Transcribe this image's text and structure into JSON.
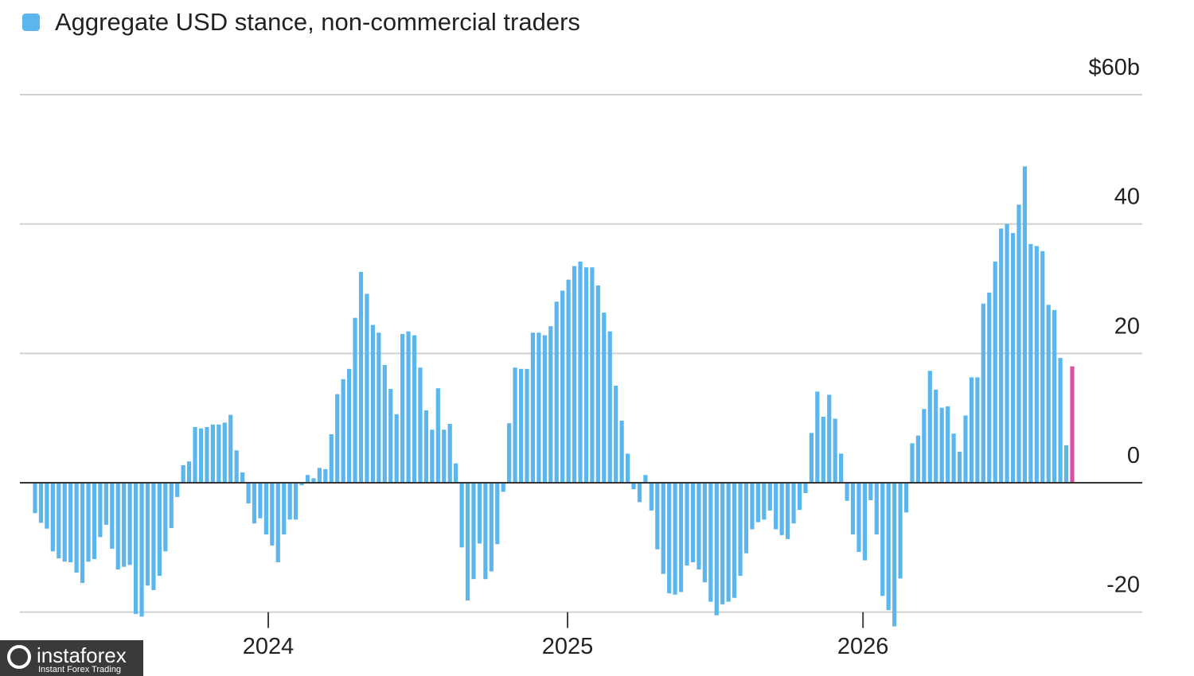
{
  "chart_data": {
    "type": "bar",
    "series": [
      {
        "name": "Aggregate USD stance, non-commercial traders",
        "color": "#5cb6ee",
        "last_color": "#d94fa8",
        "values": [
          -4.7,
          -6.2,
          -7.1,
          -10.6,
          -11.7,
          -12.2,
          -12.3,
          -13.9,
          -15.5,
          -12.2,
          -11.8,
          -8.4,
          -6.5,
          -10.2,
          -13.4,
          -13,
          -12.7,
          -20.3,
          -20.7,
          -15.9,
          -16.6,
          -14.4,
          -10.6,
          -7,
          -2.2,
          2.7,
          3.3,
          8.6,
          8.4,
          8.6,
          9,
          9,
          9.3,
          10.5,
          5,
          1.6,
          -3.2,
          -6.3,
          -5.5,
          -8,
          -9.7,
          -12.3,
          -8,
          -5.7,
          -5.7,
          -0.4,
          1.2,
          0.7,
          2.3,
          2.1,
          7.5,
          13.7,
          16,
          17.6,
          25.5,
          32.6,
          29.2,
          24.4,
          23.2,
          18.2,
          14.5,
          10.6,
          23,
          23.4,
          22.8,
          17.8,
          11.2,
          8.2,
          14.6,
          8.2,
          9.1,
          3,
          -10,
          -18.2,
          -14.9,
          -9.4,
          -14.9,
          -13.7,
          -9.5,
          -1.4,
          9.2,
          17.8,
          17.6,
          17.6,
          23.2,
          23.2,
          22.8,
          24.2,
          28,
          29.7,
          31.4,
          33.5,
          34.2,
          33.3,
          33.3,
          30.5,
          26.3,
          23.4,
          15,
          9.6,
          4.5,
          -1,
          -3,
          1.2,
          -4.3,
          -10.3,
          -14.1,
          -17.1,
          -17.3,
          -16.9,
          -12.8,
          -12.3,
          -13.4,
          -15.4,
          -18.4,
          -20.5,
          -18.8,
          -18.4,
          -17.8,
          -14.4,
          -10.9,
          -7.2,
          -6.1,
          -5.7,
          -4.3,
          -7.2,
          -8.1,
          -8.7,
          -6.3,
          -4.2,
          -1.6,
          7.7,
          14.1,
          10.2,
          13.6,
          9.9,
          4.5,
          -2.8,
          -8,
          -10.7,
          -12,
          -2.7,
          -8,
          -17.5,
          -19.7,
          -22.2,
          -14.8,
          -4.6,
          6.1,
          7.3,
          11.4,
          17.3,
          14.4,
          11.6,
          11.8,
          7.6,
          4.8,
          10.4,
          16.3,
          16.3,
          27.7,
          29.4,
          34.2,
          39.3,
          40,
          38.6,
          43,
          48.9,
          36.9,
          36.6,
          35.8,
          27.5,
          26.7,
          19.3,
          5.8,
          18
        ]
      }
    ],
    "categories": [
      null,
      null,
      null,
      null,
      null,
      null,
      null,
      null,
      null,
      null,
      null,
      null,
      null,
      null,
      null,
      null,
      null,
      null,
      null,
      null,
      null,
      null,
      null,
      null,
      null,
      null,
      null,
      null,
      null,
      null,
      null,
      null,
      null,
      null,
      null,
      null,
      null,
      null,
      null,
      null,
      null,
      null,
      null,
      null,
      null,
      null,
      null,
      null,
      null,
      null,
      null,
      null,
      null,
      null,
      null,
      null,
      null,
      null,
      null,
      null,
      null,
      null,
      null,
      null,
      null,
      null,
      null,
      null,
      null,
      null,
      null,
      null,
      null,
      null,
      null,
      null,
      null,
      null,
      null,
      null,
      null,
      null,
      null,
      null,
      null,
      null,
      null,
      null,
      null,
      null,
      null,
      null,
      null,
      null,
      null,
      null,
      null,
      null,
      null,
      null,
      null,
      null,
      null,
      null,
      null,
      null,
      null,
      null,
      null,
      null,
      null,
      null,
      null,
      null,
      null,
      null,
      null,
      null,
      null,
      null,
      null,
      null,
      null,
      null,
      null,
      null,
      null,
      null,
      null,
      null,
      null,
      null,
      null,
      null,
      null,
      null,
      null,
      null,
      null,
      null,
      null,
      null,
      null,
      null,
      null,
      null,
      null,
      null,
      null,
      null,
      null,
      null,
      null,
      null,
      null,
      null,
      null,
      null,
      null,
      null,
      null,
      null,
      null,
      null,
      null,
      null,
      null,
      null,
      null,
      null,
      null,
      null,
      null,
      null,
      null,
      null
    ],
    "xticks": [
      {
        "value": 39.35,
        "label": "2024"
      },
      {
        "value": 89.85,
        "label": "2025"
      },
      {
        "value": 139.7,
        "label": "2026"
      }
    ],
    "ylim": [
      -22.5,
      60
    ],
    "yticks": [
      -20,
      0,
      20,
      40,
      {
        "value": 60,
        "label": "$60b"
      }
    ],
    "grid": true
  },
  "watermark": {
    "name": "instaforex",
    "tagline": "Instant Forex Trading"
  }
}
